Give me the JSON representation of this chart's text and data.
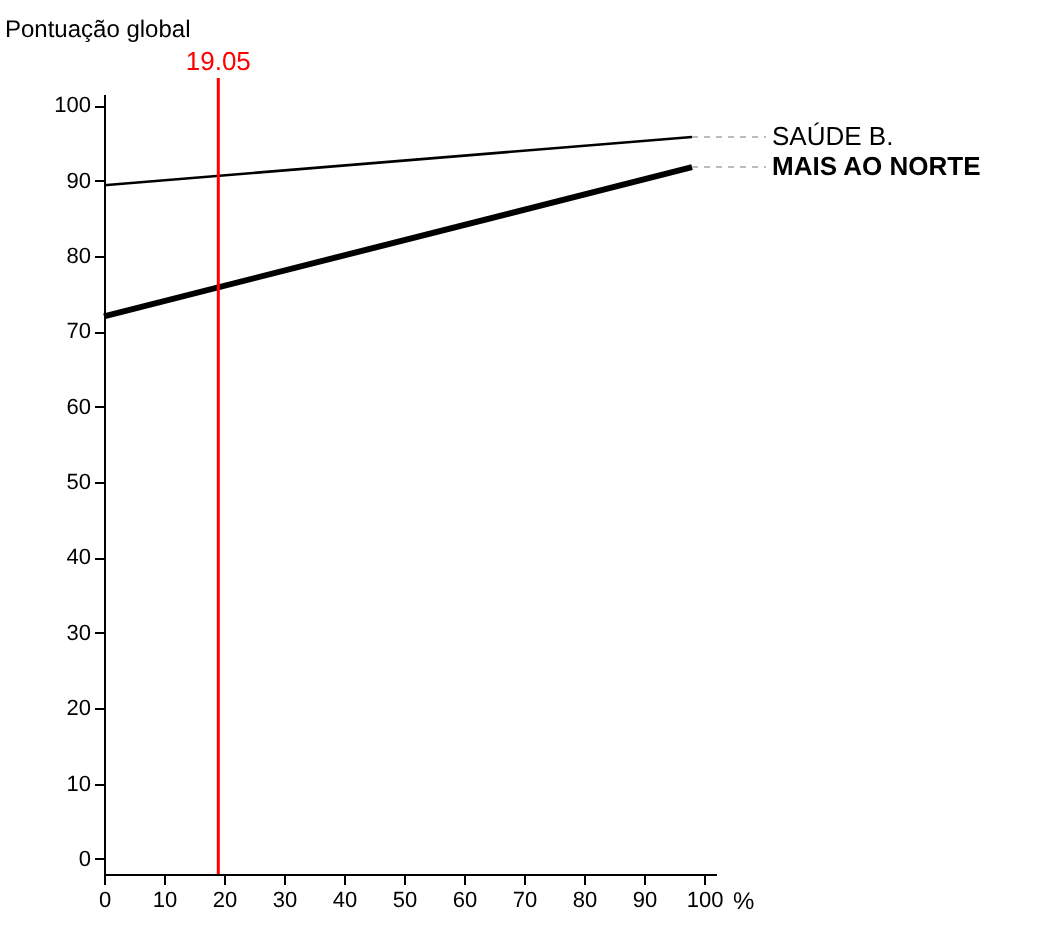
{
  "chart_data": {
    "type": "line",
    "ylabel": "Pontuação global",
    "xlabel": "%",
    "x": [
      0,
      98
    ],
    "series": [
      {
        "name": "SAÚDE B.",
        "color": "#000000",
        "values": [
          89.4,
          95.8
        ]
      },
      {
        "name": "MAIS AO NORTE",
        "color": "#000000",
        "values": [
          72,
          91.8
        ]
      }
    ],
    "xlim": [
      0,
      102
    ],
    "xticks": [
      0,
      10,
      20,
      30,
      40,
      50,
      60,
      70,
      80,
      90,
      100
    ],
    "ylim": [
      -2,
      101.5
    ],
    "yticks": [
      0,
      10,
      20,
      30,
      40,
      50,
      60,
      70,
      80,
      90,
      100
    ],
    "ref_lines": [
      {
        "axis": "x",
        "value": 19.05,
        "label": "19.05",
        "color": "#ff0000"
      }
    ],
    "grid": false,
    "marker": "none",
    "line_style": "solid"
  }
}
